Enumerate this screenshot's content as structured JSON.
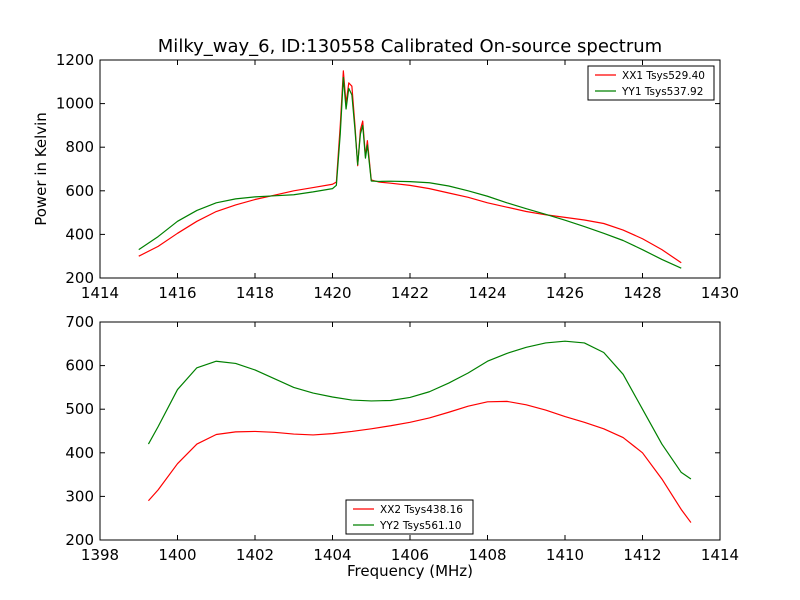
{
  "figure": {
    "title": "Milky_way_6, ID:130558 Calibrated On-source spectrum",
    "xlabel": "Frequency (MHz)"
  },
  "chart_data": [
    {
      "type": "line",
      "ylabel": "Power in Kelvin",
      "xlim": [
        1414,
        1430
      ],
      "ylim": [
        200,
        1200
      ],
      "xticks": [
        1414,
        1416,
        1418,
        1420,
        1422,
        1424,
        1426,
        1428,
        1430
      ],
      "yticks": [
        200,
        400,
        600,
        800,
        1000,
        1200
      ],
      "legend": "top-right",
      "series": [
        {
          "name": "XX1 Tsys529.40",
          "color": "#ff0000",
          "points": [
            [
              1415,
              300
            ],
            [
              1415.5,
              345
            ],
            [
              1416,
              405
            ],
            [
              1416.5,
              460
            ],
            [
              1417,
              505
            ],
            [
              1417.5,
              535
            ],
            [
              1418,
              560
            ],
            [
              1418.5,
              580
            ],
            [
              1419,
              600
            ],
            [
              1419.5,
              615
            ],
            [
              1420,
              630
            ],
            [
              1420.1,
              640
            ],
            [
              1420.2,
              900
            ],
            [
              1420.28,
              1150
            ],
            [
              1420.35,
              1000
            ],
            [
              1420.42,
              1095
            ],
            [
              1420.5,
              1080
            ],
            [
              1420.58,
              900
            ],
            [
              1420.65,
              715
            ],
            [
              1420.72,
              880
            ],
            [
              1420.78,
              920
            ],
            [
              1420.85,
              760
            ],
            [
              1420.9,
              830
            ],
            [
              1421,
              650
            ],
            [
              1421.2,
              640
            ],
            [
              1421.5,
              635
            ],
            [
              1422,
              625
            ],
            [
              1422.5,
              610
            ],
            [
              1423,
              590
            ],
            [
              1423.5,
              570
            ],
            [
              1424,
              545
            ],
            [
              1424.5,
              525
            ],
            [
              1425,
              505
            ],
            [
              1425.5,
              490
            ],
            [
              1426,
              478
            ],
            [
              1426.5,
              466
            ],
            [
              1427,
              450
            ],
            [
              1427.5,
              420
            ],
            [
              1428,
              380
            ],
            [
              1428.5,
              330
            ],
            [
              1429,
              270
            ]
          ]
        },
        {
          "name": "YY1 Tsys537.92",
          "color": "#008000",
          "points": [
            [
              1415,
              330
            ],
            [
              1415.5,
              390
            ],
            [
              1416,
              460
            ],
            [
              1416.5,
              510
            ],
            [
              1417,
              545
            ],
            [
              1417.5,
              563
            ],
            [
              1418,
              572
            ],
            [
              1418.5,
              577
            ],
            [
              1419,
              582
            ],
            [
              1419.5,
              595
            ],
            [
              1420,
              610
            ],
            [
              1420.1,
              625
            ],
            [
              1420.2,
              860
            ],
            [
              1420.28,
              1120
            ],
            [
              1420.35,
              975
            ],
            [
              1420.42,
              1070
            ],
            [
              1420.5,
              1040
            ],
            [
              1420.58,
              880
            ],
            [
              1420.65,
              720
            ],
            [
              1420.72,
              860
            ],
            [
              1420.78,
              900
            ],
            [
              1420.85,
              750
            ],
            [
              1420.9,
              810
            ],
            [
              1421,
              645
            ],
            [
              1421.2,
              643
            ],
            [
              1421.5,
              644
            ],
            [
              1422,
              642
            ],
            [
              1422.5,
              637
            ],
            [
              1423,
              622
            ],
            [
              1423.5,
              600
            ],
            [
              1424,
              575
            ],
            [
              1424.5,
              545
            ],
            [
              1425,
              518
            ],
            [
              1425.5,
              492
            ],
            [
              1426,
              465
            ],
            [
              1426.5,
              436
            ],
            [
              1427,
              405
            ],
            [
              1427.5,
              372
            ],
            [
              1428,
              330
            ],
            [
              1428.5,
              285
            ],
            [
              1429,
              245
            ]
          ]
        }
      ]
    },
    {
      "type": "line",
      "xlim": [
        1398,
        1414
      ],
      "ylim": [
        200,
        700
      ],
      "xticks": [
        1398,
        1400,
        1402,
        1404,
        1406,
        1408,
        1410,
        1412,
        1414
      ],
      "yticks": [
        200,
        300,
        400,
        500,
        600,
        700
      ],
      "legend": "bottom-center",
      "series": [
        {
          "name": "XX2 Tsys438.16",
          "color": "#ff0000",
          "points": [
            [
              1399.25,
              290
            ],
            [
              1399.5,
              315
            ],
            [
              1400,
              375
            ],
            [
              1400.5,
              420
            ],
            [
              1401,
              442
            ],
            [
              1401.5,
              448
            ],
            [
              1402,
              449
            ],
            [
              1402.5,
              447
            ],
            [
              1403,
              443
            ],
            [
              1403.5,
              441
            ],
            [
              1404,
              444
            ],
            [
              1404.5,
              449
            ],
            [
              1405,
              455
            ],
            [
              1405.5,
              462
            ],
            [
              1406,
              470
            ],
            [
              1406.5,
              480
            ],
            [
              1407,
              493
            ],
            [
              1407.5,
              507
            ],
            [
              1408,
              517
            ],
            [
              1408.5,
              518
            ],
            [
              1409,
              510
            ],
            [
              1409.5,
              498
            ],
            [
              1410,
              483
            ],
            [
              1410.5,
              470
            ],
            [
              1411,
              455
            ],
            [
              1411.5,
              435
            ],
            [
              1412,
              400
            ],
            [
              1412.5,
              340
            ],
            [
              1413,
              270
            ],
            [
              1413.25,
              240
            ]
          ]
        },
        {
          "name": "YY2 Tsys561.10",
          "color": "#008000",
          "points": [
            [
              1399.25,
              420
            ],
            [
              1399.5,
              460
            ],
            [
              1400,
              545
            ],
            [
              1400.5,
              595
            ],
            [
              1401,
              610
            ],
            [
              1401.5,
              605
            ],
            [
              1402,
              590
            ],
            [
              1402.5,
              570
            ],
            [
              1403,
              550
            ],
            [
              1403.5,
              537
            ],
            [
              1404,
              528
            ],
            [
              1404.5,
              521
            ],
            [
              1405,
              519
            ],
            [
              1405.5,
              520
            ],
            [
              1406,
              527
            ],
            [
              1406.5,
              540
            ],
            [
              1407,
              560
            ],
            [
              1407.5,
              583
            ],
            [
              1408,
              610
            ],
            [
              1408.5,
              628
            ],
            [
              1409,
              642
            ],
            [
              1409.5,
              652
            ],
            [
              1410,
              656
            ],
            [
              1410.5,
              652
            ],
            [
              1411,
              630
            ],
            [
              1411.5,
              580
            ],
            [
              1412,
              500
            ],
            [
              1412.5,
              420
            ],
            [
              1413,
              355
            ],
            [
              1413.25,
              340
            ]
          ]
        }
      ]
    }
  ]
}
